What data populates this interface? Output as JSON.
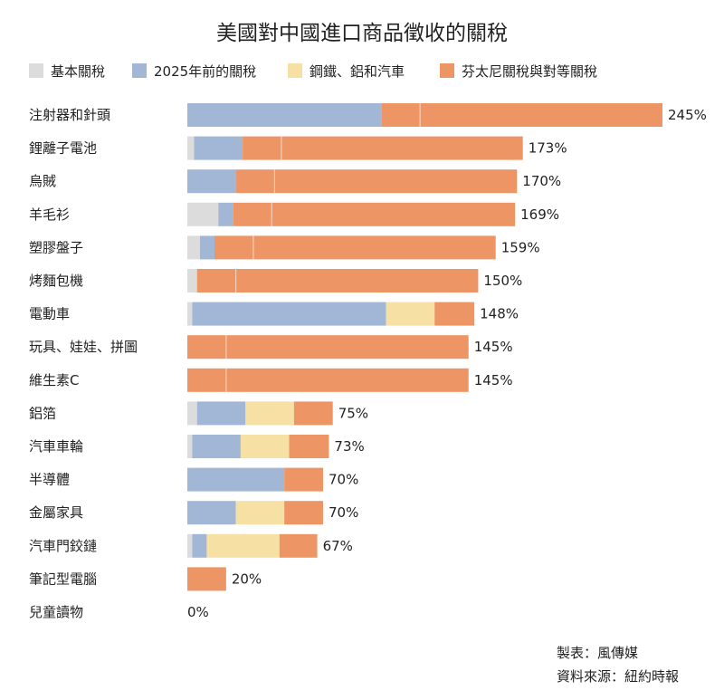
{
  "chart_data": {
    "type": "bar",
    "orientation": "horizontal",
    "stacked": true,
    "title": "美國對中國進口商品徵收的關稅",
    "categories": [
      "注射器和針頭",
      "鋰離子電池",
      "烏賊",
      "羊毛衫",
      "塑膠盤子",
      "烤麵包機",
      "電動車",
      "玩具、娃娃、拼圖",
      "維生素C",
      "鋁箔",
      "汽車車輪",
      "半導體",
      "金屬家具",
      "汽車門鉸鏈",
      "筆記型電腦",
      "兒童讀物"
    ],
    "series": [
      {
        "name": "基本關稅",
        "color": "#dcdcdc",
        "values": [
          0,
          3.5,
          0,
          16,
          6.5,
          5,
          2.5,
          0,
          0,
          5,
          2.5,
          0,
          0,
          2.5,
          0,
          0
        ]
      },
      {
        "name": "2025年前的關稅",
        "color": "#a2b7d6",
        "values": [
          100,
          25,
          25,
          7.5,
          7.5,
          0,
          100,
          0,
          0,
          25,
          25,
          50,
          25,
          7.5,
          0,
          0
        ]
      },
      {
        "name": "鋼鐵、鋁和汽車",
        "color": "#f7e0a4",
        "values": [
          0,
          0,
          0,
          0,
          0,
          0,
          25,
          0,
          0,
          25,
          25,
          0,
          25,
          37.5,
          0,
          0
        ]
      },
      {
        "name": "芬太尼關稅與對等關稅",
        "color": "#ee9565",
        "values": [
          145,
          144.5,
          145,
          145.5,
          145,
          145,
          20.5,
          145,
          145,
          20,
          20.5,
          20,
          20,
          19.5,
          20,
          0
        ]
      }
    ],
    "divider_at": [
      20,
      20,
      20,
      20,
      20,
      20,
      null,
      20,
      20,
      null,
      null,
      null,
      null,
      null,
      null,
      null
    ],
    "totals": [
      "245%",
      "173%",
      "170%",
      "169%",
      "159%",
      "150%",
      "148%",
      "145%",
      "145%",
      "75%",
      "73%",
      "70%",
      "70%",
      "67%",
      "20%",
      "0%"
    ],
    "xlim": [
      0,
      245
    ],
    "grid": false,
    "legend_position": "top"
  },
  "credits": {
    "maker": "製表：風傳媒",
    "source": "資料來源：紐約時報"
  }
}
